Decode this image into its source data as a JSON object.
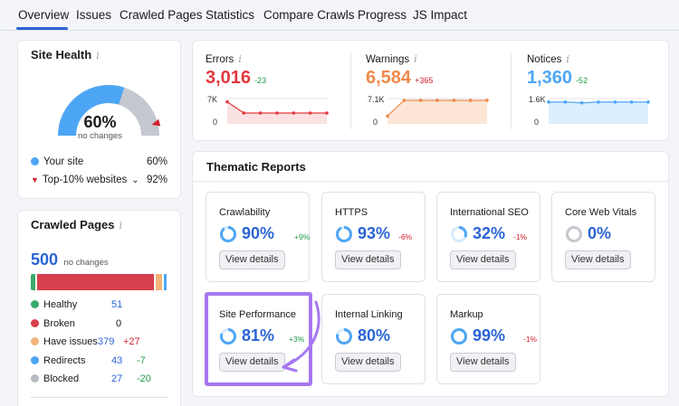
{
  "nav": {
    "tabs": [
      {
        "label": "Overview"
      },
      {
        "label": "Issues"
      },
      {
        "label": "Crawled Pages"
      },
      {
        "label": "Statistics"
      },
      {
        "label": "Compare Crawls"
      },
      {
        "label": "Progress"
      },
      {
        "label": "JS Impact"
      }
    ]
  },
  "site_health": {
    "title": "Site Health",
    "info": "i",
    "percent": "60%",
    "sub": "no changes",
    "gauge_value": 0.6,
    "your_site_label": "Your site",
    "your_site_value": "60%",
    "top_label": "Top-10% websites",
    "top_value": "92%",
    "top_marker_value": 0.92
  },
  "crawled_pages": {
    "title": "Crawled Pages",
    "info": "i",
    "total": "500",
    "total_sub": "no changes",
    "bar_values": [
      7,
      172,
      9,
      4,
      0
    ],
    "rows": [
      {
        "label": "Healthy",
        "value": "51",
        "delta": "",
        "color": "#3aaa6b"
      },
      {
        "label": "Broken",
        "value": "0",
        "delta": "",
        "color": "#d6404c"
      },
      {
        "label": "Have issues",
        "value": "379",
        "delta": "+27",
        "color": "#f2b47b"
      },
      {
        "label": "Redirects",
        "value": "43",
        "delta": "-7",
        "color": "#4da6f5"
      },
      {
        "label": "Blocked",
        "value": "27",
        "delta": "-20",
        "color": "#b5bac3"
      }
    ]
  },
  "kpis": [
    {
      "label": "Errors",
      "info": "i",
      "value": "3,016",
      "delta": "-23",
      "y_top": "7K",
      "y_bottom": "0",
      "color": "#e2383f",
      "fill": "#fbe2e2",
      "series": [
        6100,
        3000,
        3000,
        3000,
        3000,
        3000,
        3000
      ]
    },
    {
      "label": "Warnings",
      "info": "i",
      "value": "6,584",
      "delta": "+365",
      "y_top": "7.1K",
      "y_bottom": "0",
      "color": "#f08a4b",
      "fill": "#fde6d6",
      "series": [
        2200,
        6600,
        6600,
        6600,
        6600,
        6600,
        6600
      ]
    },
    {
      "label": "Notices",
      "info": "i",
      "value": "1,360",
      "delta": "-52",
      "y_top": "1.6K",
      "y_bottom": "0",
      "color": "#4da6f5",
      "fill": "#dcefff",
      "series": [
        1380,
        1380,
        1330,
        1380,
        1380,
        1380,
        1380
      ]
    }
  ],
  "thematic": {
    "title": "Thematic Reports",
    "button_label": "View details",
    "tiles": [
      {
        "title": "Crawlability",
        "pct": "90%",
        "delta": "+9%",
        "delta_type": "green",
        "ring": 0.9
      },
      {
        "title": "HTTPS",
        "pct": "93%",
        "delta": "-6%",
        "delta_type": "red",
        "ring": 0.93
      },
      {
        "title": "International SEO",
        "pct": "32%",
        "delta": "-1%",
        "delta_type": "red",
        "ring": 0.32
      },
      {
        "title": "Core Web Vitals",
        "pct": "0%",
        "delta": "",
        "delta_type": "",
        "ring": 0
      },
      {
        "title": "Site Performance",
        "pct": "81%",
        "delta": "+3%",
        "delta_type": "green",
        "ring": 0.81
      },
      {
        "title": "Internal Linking",
        "pct": "80%",
        "delta": "",
        "delta_type": "",
        "ring": 0.8
      },
      {
        "title": "Markup",
        "pct": "99%",
        "delta": "-1%",
        "delta_type": "red",
        "ring": 0.99
      }
    ]
  },
  "colors": {
    "accent": "#2a64d6",
    "highlight": "#a678f0",
    "gauge_blue": "#4da6f5",
    "gauge_grey": "#c4c8cf"
  }
}
